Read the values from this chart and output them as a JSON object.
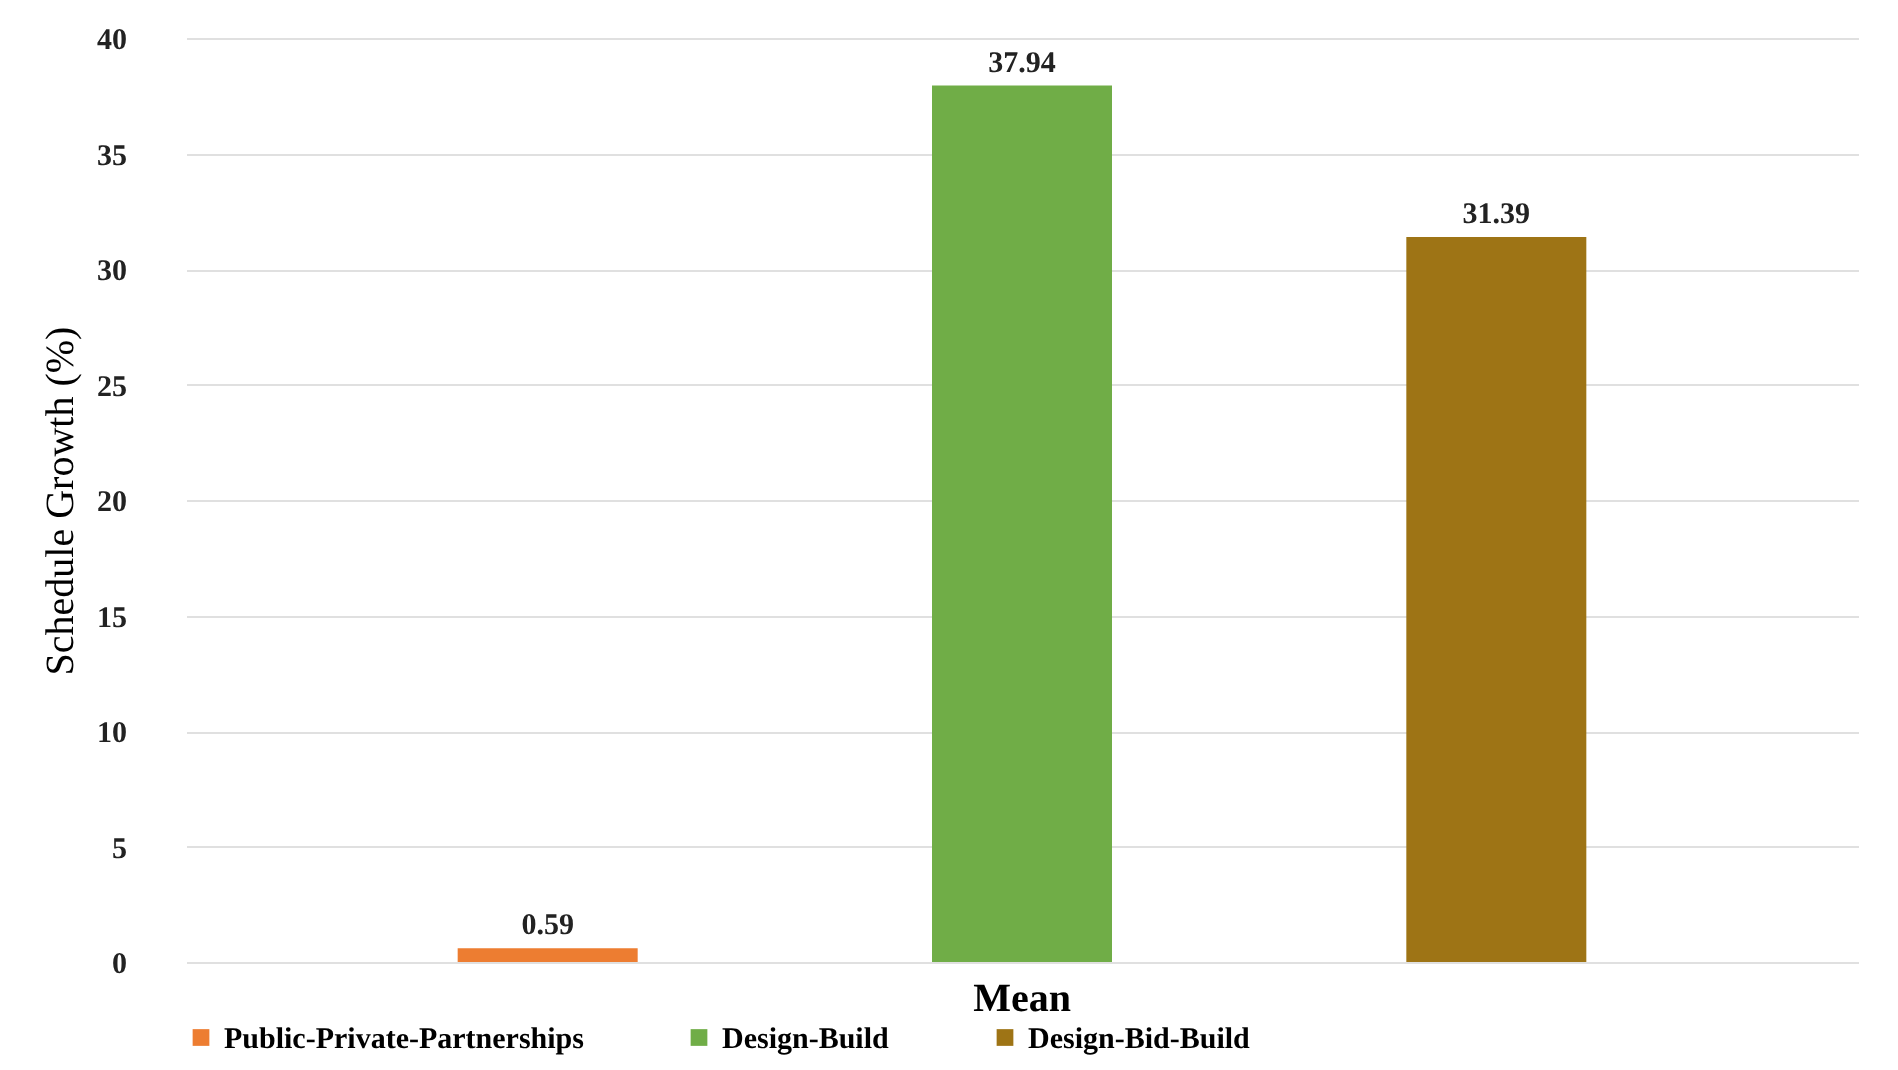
{
  "chart_data": {
    "type": "bar",
    "categories": [
      "Mean"
    ],
    "ylabel": "Schedule Growth (%)",
    "ylim": [
      0,
      40
    ],
    "yticks": [
      0,
      5,
      10,
      15,
      20,
      25,
      30,
      35,
      40
    ],
    "grid": "y",
    "legend": "bottom",
    "data_labels": true,
    "series": [
      {
        "name": "Public-Private-Partnerships",
        "color": "#ed7d31",
        "values": [
          0.59
        ]
      },
      {
        "name": "Design-Build",
        "color": "#70ad47",
        "values": [
          37.94
        ]
      },
      {
        "name": "Design-Bid-Build",
        "color": "#9e7415",
        "values": [
          31.39
        ]
      }
    ]
  }
}
